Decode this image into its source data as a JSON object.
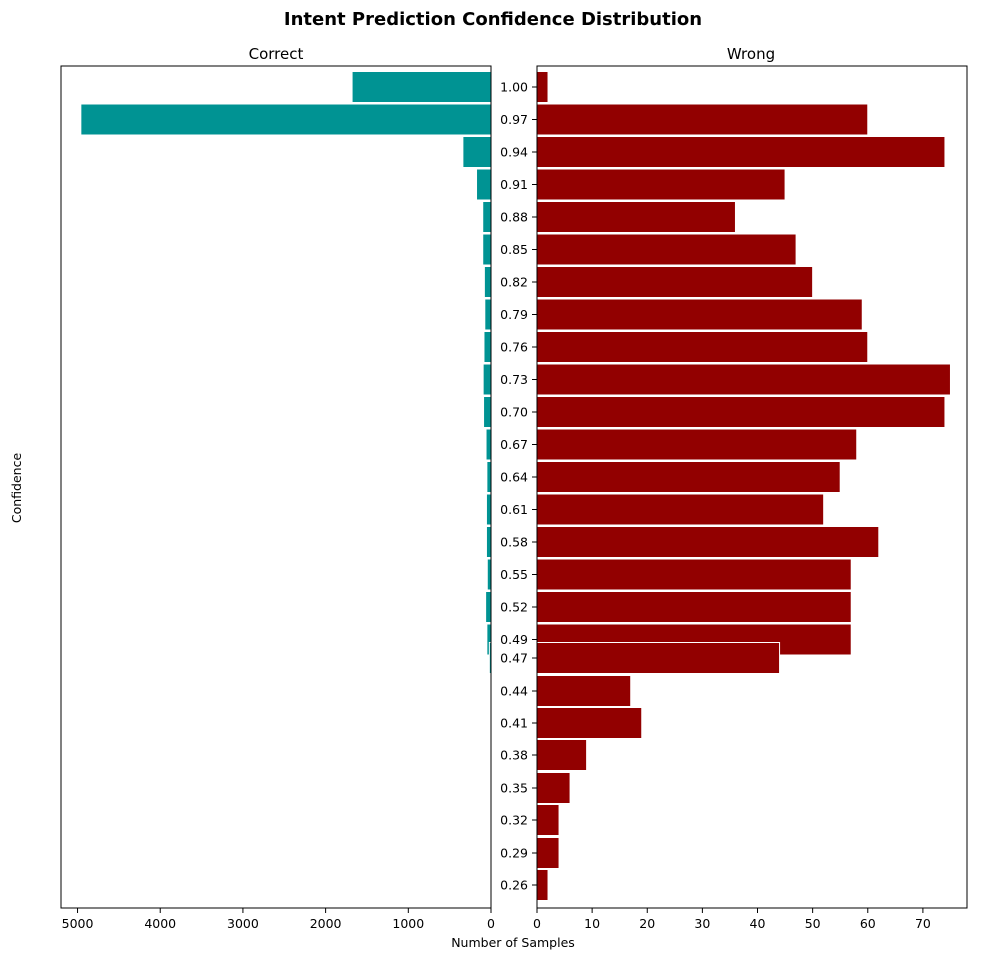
{
  "chart_data": {
    "type": "bar",
    "orientation": "horizontal",
    "title": "Intent Prediction Confidence Distribution",
    "ylabel": "Confidence",
    "xlabel": "Number of Samples",
    "categories": [
      "1.00",
      "0.97",
      "0.94",
      "0.91",
      "0.88",
      "0.85",
      "0.82",
      "0.79",
      "0.76",
      "0.73",
      "0.70",
      "0.67",
      "0.64",
      "0.61",
      "0.58",
      "0.55",
      "0.52",
      "0.49",
      "0.47",
      "0.44",
      "0.41",
      "0.38",
      "0.35",
      "0.32",
      "0.29",
      "0.26"
    ],
    "colors": {
      "correct": "#009393",
      "wrong": "#920000",
      "edge": "#ffffff"
    },
    "panels": [
      {
        "name": "Correct",
        "xlim": [
          5200,
          0
        ],
        "xticks": [
          5000,
          4000,
          3000,
          2000,
          1000,
          0
        ],
        "values": [
          1680,
          4960,
          340,
          175,
          100,
          100,
          80,
          75,
          85,
          95,
          90,
          60,
          50,
          55,
          55,
          45,
          65,
          50,
          20,
          0,
          0,
          0,
          0,
          0,
          0,
          0
        ]
      },
      {
        "name": "Wrong",
        "xlim": [
          0,
          78
        ],
        "xticks": [
          0,
          10,
          20,
          30,
          40,
          50,
          60,
          70
        ],
        "values": [
          2,
          60,
          74,
          45,
          36,
          47,
          50,
          59,
          60,
          75,
          74,
          58,
          55,
          52,
          62,
          57,
          57,
          57,
          44,
          17,
          19,
          9,
          6,
          4,
          4,
          2
        ]
      }
    ]
  }
}
